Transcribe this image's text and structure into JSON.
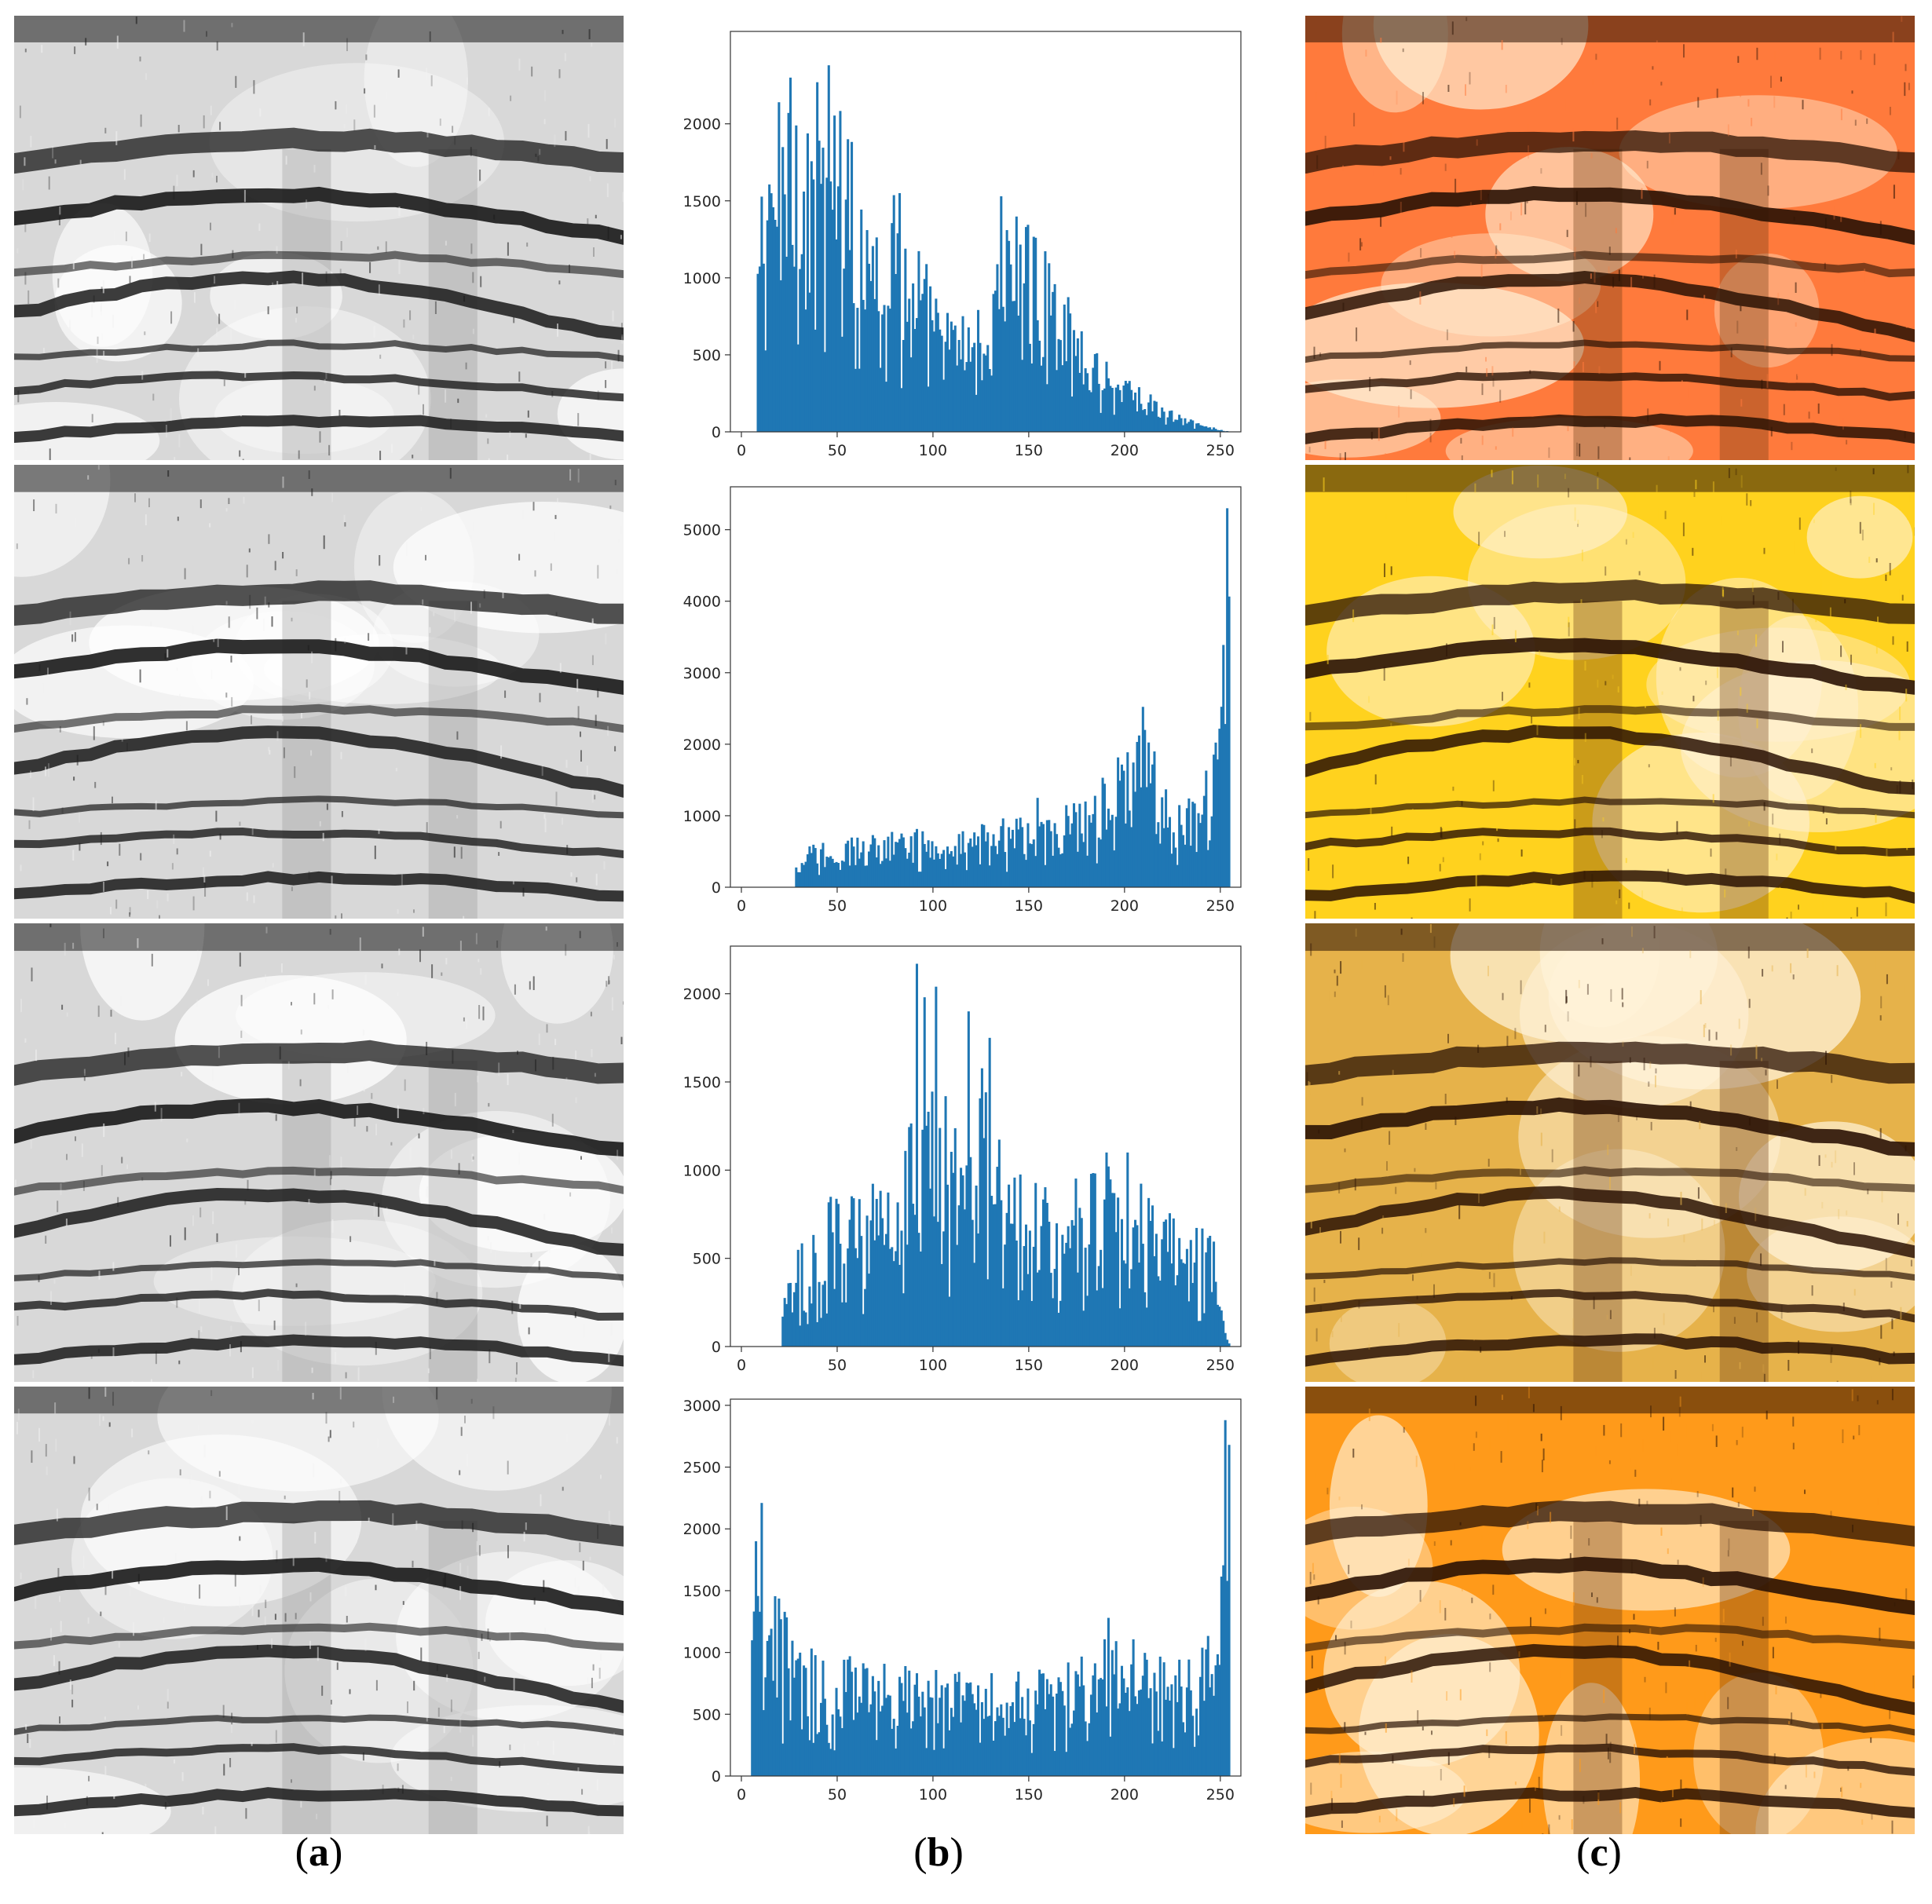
{
  "captions": {
    "a": {
      "open": "(",
      "letter": "a",
      "close": ")"
    },
    "b": {
      "open": "(",
      "letter": "b",
      "close": ")"
    },
    "c": {
      "open": "(",
      "letter": "c",
      "close": ")"
    }
  },
  "colors": {
    "bar": "#1f77b4",
    "tints": [
      "#ff7a3c",
      "#ffd21e",
      "#e6b24a",
      "#ff9a1a"
    ]
  },
  "chart_data": [
    {
      "type": "bar",
      "title": "",
      "xlabel": "",
      "ylabel": "",
      "xlim": [
        0,
        255
      ],
      "ylim": [
        0,
        2600
      ],
      "xticks": [
        0,
        50,
        100,
        150,
        200,
        250
      ],
      "yticks": [
        0,
        500,
        1000,
        1500,
        2000
      ],
      "grid": false,
      "envelope": [
        [
          0,
          0
        ],
        [
          7,
          0
        ],
        [
          8,
          950
        ],
        [
          10,
          1200
        ],
        [
          15,
          1450
        ],
        [
          20,
          1600
        ],
        [
          25,
          1750
        ],
        [
          30,
          1700
        ],
        [
          35,
          1600
        ],
        [
          40,
          1650
        ],
        [
          45,
          1700
        ],
        [
          50,
          1580
        ],
        [
          55,
          1400
        ],
        [
          60,
          1350
        ],
        [
          70,
          1250
        ],
        [
          80,
          1100
        ],
        [
          90,
          950
        ],
        [
          100,
          700
        ],
        [
          105,
          600
        ],
        [
          110,
          550
        ],
        [
          120,
          580
        ],
        [
          128,
          560
        ],
        [
          130,
          500
        ],
        [
          132,
          1000
        ],
        [
          135,
          1100
        ],
        [
          140,
          1050
        ],
        [
          150,
          1000
        ],
        [
          160,
          800
        ],
        [
          170,
          640
        ],
        [
          180,
          500
        ],
        [
          190,
          380
        ],
        [
          200,
          280
        ],
        [
          210,
          200
        ],
        [
          220,
          120
        ],
        [
          230,
          70
        ],
        [
          240,
          40
        ],
        [
          250,
          10
        ],
        [
          255,
          0
        ]
      ],
      "peaks": [
        [
          25,
          2300
        ],
        [
          45,
          2380
        ],
        [
          55,
          1900
        ],
        [
          82,
          1550
        ],
        [
          148,
          1330
        ],
        [
          139,
          1240
        ]
      ]
    },
    {
      "type": "bar",
      "title": "",
      "xlabel": "",
      "ylabel": "",
      "xlim": [
        0,
        255
      ],
      "ylim": [
        0,
        5600
      ],
      "xticks": [
        0,
        50,
        100,
        150,
        200,
        250
      ],
      "yticks": [
        0,
        1000,
        2000,
        3000,
        4000,
        5000
      ],
      "grid": false,
      "envelope": [
        [
          0,
          0
        ],
        [
          27,
          0
        ],
        [
          28,
          250
        ],
        [
          35,
          430
        ],
        [
          50,
          470
        ],
        [
          70,
          560
        ],
        [
          90,
          600
        ],
        [
          110,
          620
        ],
        [
          130,
          680
        ],
        [
          150,
          770
        ],
        [
          170,
          850
        ],
        [
          180,
          950
        ],
        [
          190,
          1150
        ],
        [
          200,
          1400
        ],
        [
          205,
          1600
        ],
        [
          210,
          1900
        ],
        [
          214,
          1500
        ],
        [
          218,
          1100
        ],
        [
          225,
          900
        ],
        [
          235,
          950
        ],
        [
          240,
          1050
        ],
        [
          245,
          1400
        ],
        [
          250,
          2000
        ],
        [
          252,
          3000
        ],
        [
          253,
          3900
        ],
        [
          254,
          5000
        ],
        [
          255,
          0
        ]
      ],
      "peaks": [
        [
          253,
          5300
        ],
        [
          210,
          2200
        ],
        [
          154,
          1250
        ]
      ]
    },
    {
      "type": "bar",
      "title": "",
      "xlabel": "",
      "ylabel": "",
      "xlim": [
        0,
        255
      ],
      "ylim": [
        0,
        2270
      ],
      "xticks": [
        0,
        50,
        100,
        150,
        200,
        250
      ],
      "yticks": [
        0,
        500,
        1000,
        1500,
        2000
      ],
      "grid": false,
      "envelope": [
        [
          0,
          0
        ],
        [
          20,
          0
        ],
        [
          21,
          150
        ],
        [
          25,
          350
        ],
        [
          30,
          450
        ],
        [
          40,
          550
        ],
        [
          50,
          650
        ],
        [
          60,
          700
        ],
        [
          70,
          750
        ],
        [
          80,
          850
        ],
        [
          90,
          950
        ],
        [
          100,
          1050
        ],
        [
          110,
          1100
        ],
        [
          120,
          1150
        ],
        [
          130,
          1150
        ],
        [
          135,
          1050
        ],
        [
          140,
          900
        ],
        [
          150,
          750
        ],
        [
          160,
          680
        ],
        [
          170,
          700
        ],
        [
          180,
          750
        ],
        [
          190,
          760
        ],
        [
          200,
          720
        ],
        [
          210,
          650
        ],
        [
          220,
          580
        ],
        [
          230,
          540
        ],
        [
          240,
          520
        ],
        [
          245,
          480
        ],
        [
          248,
          350
        ],
        [
          250,
          200
        ],
        [
          252,
          60
        ],
        [
          255,
          0
        ]
      ],
      "peaks": [
        [
          91,
          2170
        ],
        [
          101,
          2040
        ],
        [
          95,
          1980
        ],
        [
          118,
          1900
        ],
        [
          129,
          1750
        ],
        [
          190,
          1100
        ],
        [
          201,
          1100
        ]
      ]
    },
    {
      "type": "bar",
      "title": "",
      "xlabel": "",
      "ylabel": "",
      "xlim": [
        0,
        255
      ],
      "ylim": [
        0,
        3050
      ],
      "xticks": [
        0,
        50,
        100,
        150,
        200,
        250
      ],
      "yticks": [
        0,
        500,
        1000,
        1500,
        2000,
        2500,
        3000
      ],
      "grid": false,
      "envelope": [
        [
          0,
          0
        ],
        [
          4,
          0
        ],
        [
          5,
          950
        ],
        [
          8,
          1600
        ],
        [
          10,
          1700
        ],
        [
          15,
          1200
        ],
        [
          20,
          1000
        ],
        [
          30,
          850
        ],
        [
          40,
          750
        ],
        [
          60,
          700
        ],
        [
          80,
          650
        ],
        [
          100,
          620
        ],
        [
          120,
          600
        ],
        [
          140,
          600
        ],
        [
          160,
          650
        ],
        [
          180,
          720
        ],
        [
          190,
          800
        ],
        [
          200,
          850
        ],
        [
          210,
          800
        ],
        [
          220,
          720
        ],
        [
          230,
          700
        ],
        [
          240,
          800
        ],
        [
          245,
          1000
        ],
        [
          250,
          1500
        ],
        [
          252,
          2100
        ],
        [
          253,
          2500
        ],
        [
          254,
          1900
        ],
        [
          255,
          0
        ]
      ],
      "peaks": [
        [
          252,
          2880
        ],
        [
          254,
          2680
        ],
        [
          10,
          2210
        ],
        [
          7,
          1900
        ],
        [
          191,
          1280
        ]
      ]
    }
  ]
}
